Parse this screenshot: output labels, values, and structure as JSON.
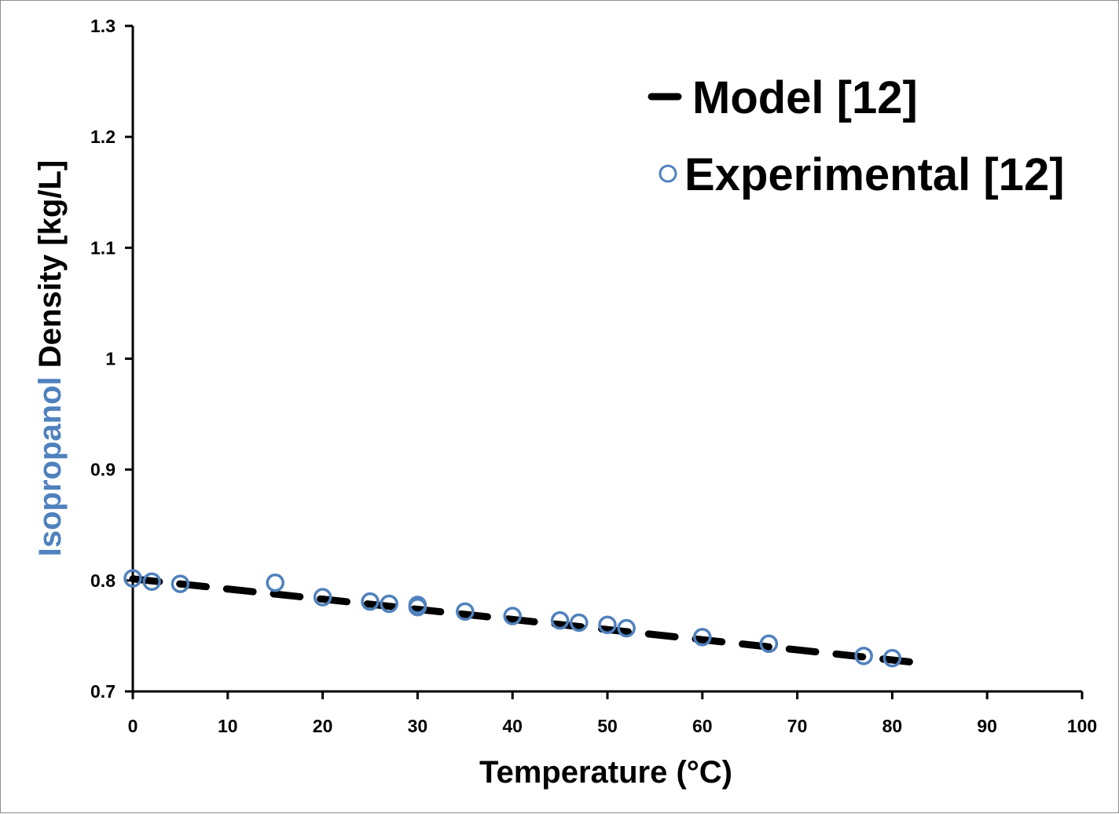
{
  "chart_data": {
    "type": "scatter",
    "xlabel": "Temperature (°C)",
    "ylabel_parts": [
      "Isopropanol",
      " Density [kg/L]"
    ],
    "xlim": [
      0,
      100
    ],
    "ylim": [
      0.7,
      1.3
    ],
    "x_ticks": [
      "0",
      "10",
      "20",
      "30",
      "40",
      "50",
      "60",
      "70",
      "80",
      "90",
      "100"
    ],
    "y_ticks": [
      "0.7",
      "0.8",
      "0.9",
      "1",
      "1.1",
      "1.2",
      "1.3"
    ],
    "grid": false,
    "legend_position": "top-right",
    "colors": {
      "model": "#000000",
      "experimental": "#4f81bd",
      "ylabel_highlight": "#4f81bd",
      "axis": "#000000"
    },
    "series": [
      {
        "name": "Model [12]",
        "style": "dashed-line",
        "x": [
          0,
          82
        ],
        "y": [
          0.8015,
          0.7265
        ]
      },
      {
        "name": "Experimental [12]",
        "style": "open-circle",
        "x": [
          0,
          2,
          5,
          15,
          20,
          25,
          27,
          30,
          30,
          35,
          40,
          45,
          47,
          50,
          52,
          60,
          67,
          77,
          80
        ],
        "y": [
          0.802,
          0.799,
          0.797,
          0.798,
          0.785,
          0.781,
          0.779,
          0.778,
          0.776,
          0.772,
          0.768,
          0.764,
          0.762,
          0.76,
          0.757,
          0.749,
          0.743,
          0.732,
          0.73
        ]
      }
    ]
  }
}
